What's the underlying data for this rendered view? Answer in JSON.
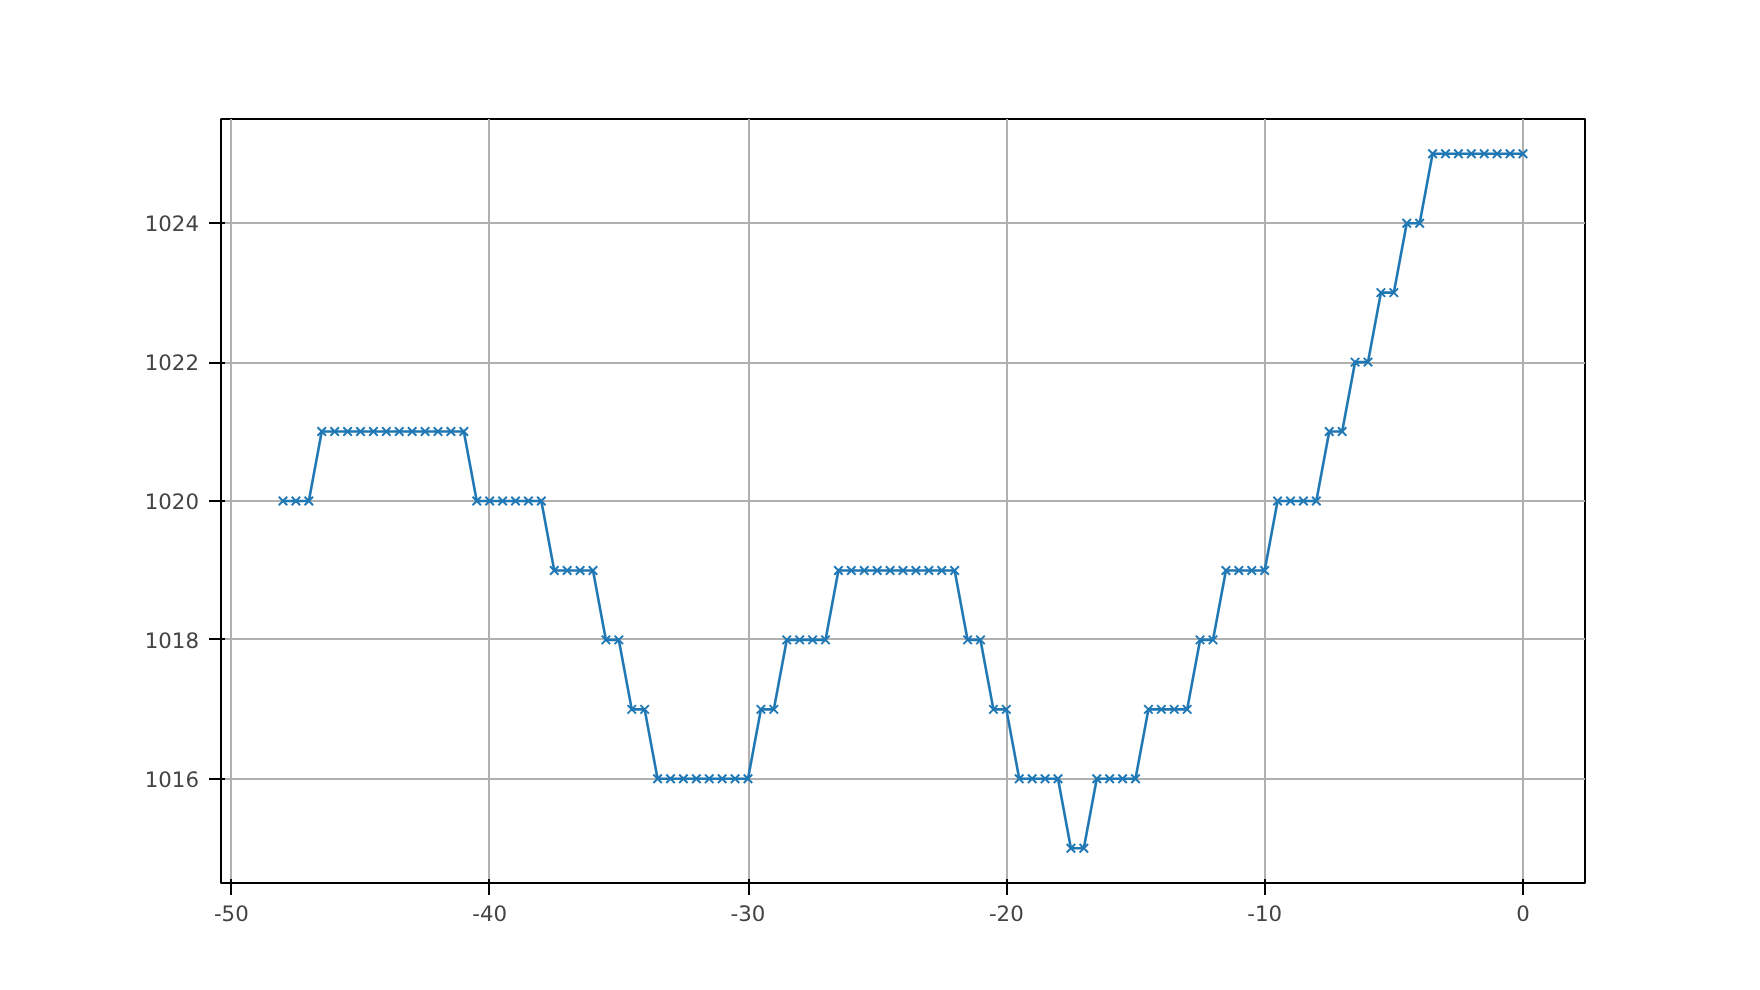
{
  "chart_data": {
    "type": "line",
    "marker": "cross",
    "grid": true,
    "x": [
      -48,
      -47.5,
      -47,
      -46.5,
      -46,
      -45.5,
      -45,
      -44.5,
      -44,
      -43.5,
      -43,
      -42.5,
      -42,
      -41.5,
      -41,
      -40.5,
      -40,
      -39.5,
      -39,
      -38.5,
      -38,
      -37.5,
      -37,
      -36.5,
      -36,
      -35.5,
      -35,
      -34.5,
      -34,
      -33.5,
      -33,
      -32.5,
      -32,
      -31.5,
      -31,
      -30.5,
      -30,
      -29.5,
      -29,
      -28.5,
      -28,
      -27.5,
      -27,
      -26.5,
      -26,
      -25.5,
      -25,
      -24.5,
      -24,
      -23.5,
      -23,
      -22.5,
      -22,
      -21.5,
      -21,
      -20.5,
      -20,
      -19.5,
      -19,
      -18.5,
      -18,
      -17.5,
      -17,
      -16.5,
      -16,
      -15.5,
      -15,
      -14.5,
      -14,
      -13.5,
      -13,
      -12.5,
      -12,
      -11.5,
      -11,
      -10.5,
      -10,
      -9.5,
      -9,
      -8.5,
      -8,
      -7.5,
      -7,
      -6.5,
      -6,
      -5.5,
      -5,
      -4.5,
      -4,
      -3.5,
      -3,
      -2.5,
      -2,
      -1.5,
      -1,
      -0.5,
      0
    ],
    "series": [
      {
        "color": "#1f77b4",
        "values": [
          1020,
          1020,
          1020,
          1021,
          1021,
          1021,
          1021,
          1021,
          1021,
          1021,
          1021,
          1021,
          1021,
          1021,
          1021,
          1020,
          1020,
          1020,
          1020,
          1020,
          1020,
          1019,
          1019,
          1019,
          1019,
          1018,
          1018,
          1017,
          1017,
          1016,
          1016,
          1016,
          1016,
          1016,
          1016,
          1016,
          1016,
          1017,
          1017,
          1018,
          1018,
          1018,
          1018,
          1019,
          1019,
          1019,
          1019,
          1019,
          1019,
          1019,
          1019,
          1019,
          1019,
          1018,
          1018,
          1017,
          1017,
          1016,
          1016,
          1016,
          1016,
          1015,
          1015,
          1016,
          1016,
          1016,
          1016,
          1017,
          1017,
          1017,
          1017,
          1018,
          1018,
          1019,
          1019,
          1019,
          1019,
          1020,
          1020,
          1020,
          1020,
          1021,
          1021,
          1022,
          1022,
          1023,
          1023,
          1024,
          1024,
          1025,
          1025,
          1025,
          1025,
          1025,
          1025,
          1025,
          1025
        ]
      }
    ],
    "xlim": [
      -50.4,
      2.4
    ],
    "ylim": [
      1014.5,
      1025.5
    ],
    "xticks": [
      -50,
      -40,
      -30,
      -20,
      -10,
      0
    ],
    "yticks": [
      1016,
      1018,
      1020,
      1022,
      1024
    ]
  }
}
